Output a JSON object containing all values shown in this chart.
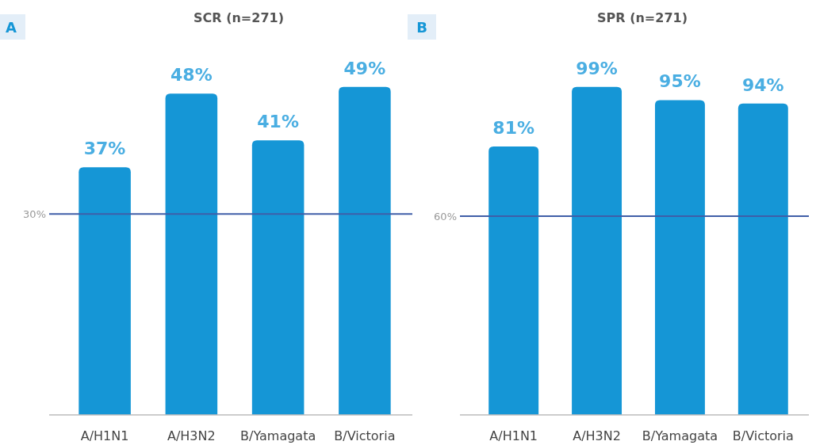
{
  "chart_data": [
    {
      "type": "bar",
      "title": "SCR (n=271)",
      "annotations": [
        "A"
      ],
      "categories": [
        "A/H1N1",
        "A/H3N2",
        "B/Yamagata",
        "B/Victoria"
      ],
      "values": [
        37,
        48,
        41,
        49
      ],
      "value_labels": [
        "37%",
        "48%",
        "41%",
        "49%"
      ],
      "color": "#1596d6",
      "tick_labels": "x",
      "ref_lines": [
        {
          "axis": "y",
          "value": 30,
          "label": "30%",
          "color": "#3f5ea8"
        }
      ]
    },
    {
      "type": "bar",
      "title": "SPR (n=271)",
      "annotations": [
        "B"
      ],
      "categories": [
        "A/H1N1",
        "A/H3N2",
        "B/Yamagata",
        "B/Victoria"
      ],
      "values": [
        81,
        99,
        95,
        94
      ],
      "value_labels": [
        "81%",
        "99%",
        "95%",
        "94%"
      ],
      "color": "#1596d6",
      "tick_labels": "x",
      "ref_lines": [
        {
          "axis": "y",
          "value": 60,
          "label": "60%",
          "color": "#3f5ea8"
        }
      ]
    }
  ]
}
